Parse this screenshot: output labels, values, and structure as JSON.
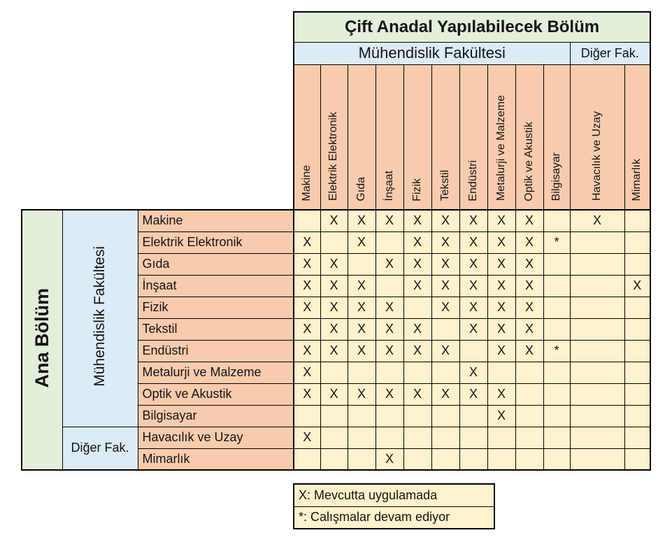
{
  "title": "Çift Anadal Yapılabilecek Bölüm",
  "col_groups": {
    "engineering": "Mühendislik Fakültesi",
    "other": "Diğer Fak."
  },
  "row_groups": {
    "main_axis": "Ana Bölüm",
    "engineering": "Mühendislik Fakültesi",
    "other": "Diğer Fak."
  },
  "departments_columns": [
    "Makine",
    "Elektrik Elektronik",
    "Gıda",
    "İnşaat",
    "Fizik",
    "Tekstil",
    "Endüstri",
    "Metalurji ve Malzeme",
    "Optik ve Akustik",
    "Bilgisayar",
    "Havacılık ve Uzay",
    "Mimarlık"
  ],
  "departments_rows": [
    "Makine",
    "Elektrik Elektronik",
    "Gıda",
    "İnşaat",
    "Fizik",
    "Tekstil",
    "Endüstri",
    "Metalurji ve Malzeme",
    "Optik ve Akustik",
    "Bilgisayar",
    "Havacılık ve Uzay",
    "Mimarlık"
  ],
  "matrix": [
    [
      "",
      "X",
      "X",
      "X",
      "X",
      "X",
      "X",
      "X",
      "X",
      "",
      "X",
      ""
    ],
    [
      "X",
      "",
      "X",
      "",
      "X",
      "X",
      "X",
      "X",
      "X",
      "*",
      "",
      ""
    ],
    [
      "X",
      "X",
      "",
      "X",
      "X",
      "X",
      "X",
      "X",
      "X",
      "",
      "",
      ""
    ],
    [
      "X",
      "X",
      "X",
      "",
      "X",
      "X",
      "X",
      "X",
      "X",
      "",
      "",
      "X"
    ],
    [
      "X",
      "X",
      "X",
      "X",
      "",
      "X",
      "X",
      "X",
      "X",
      "",
      "",
      ""
    ],
    [
      "X",
      "X",
      "X",
      "X",
      "X",
      "",
      "X",
      "X",
      "X",
      "",
      "",
      ""
    ],
    [
      "X",
      "X",
      "X",
      "X",
      "X",
      "X",
      "",
      "X",
      "X",
      "*",
      "",
      ""
    ],
    [
      "X",
      "",
      "",
      "",
      "",
      "",
      "X",
      "",
      "",
      "",
      "",
      ""
    ],
    [
      "X",
      "X",
      "X",
      "X",
      "X",
      "X",
      "X",
      "X",
      "",
      "",
      "",
      ""
    ],
    [
      "",
      "",
      "",
      "",
      "",
      "",
      "",
      "X",
      "",
      "",
      "",
      ""
    ],
    [
      "X",
      "",
      "",
      "",
      "",
      "",
      "",
      "",
      "",
      "",
      "",
      ""
    ],
    [
      "",
      "",
      "",
      "X",
      "",
      "",
      "",
      "",
      "",
      "",
      "",
      ""
    ]
  ],
  "legend": [
    "X: Mevcutta uygulamada",
    "*: Calışmalar devam ediyor"
  ],
  "colors": {
    "header_green": "#E2EFDA",
    "header_blue": "#DDEBF7",
    "header_orange": "#F8CBAD",
    "cell_yellow": "#FFF2CC",
    "border": "#000000"
  }
}
